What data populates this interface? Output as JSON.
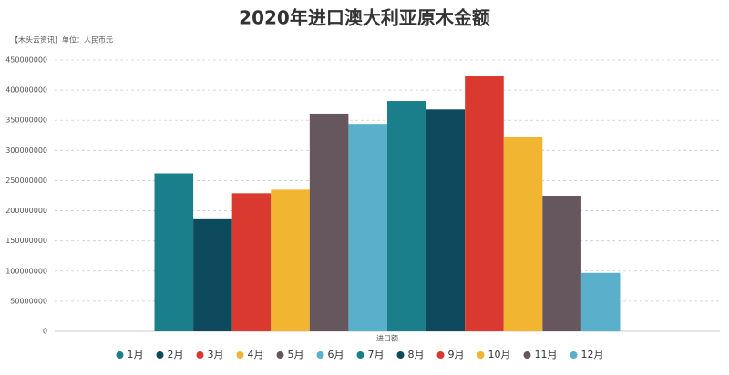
{
  "chart_data": {
    "type": "bar",
    "title": "2020年进口澳大利亚原木金额",
    "subtitle": "【木头云资讯】单位：人民币元",
    "categories": [
      "进口额"
    ],
    "series": [
      {
        "name": "1月",
        "color": "#1b7f8b",
        "values": [
          262000000
        ]
      },
      {
        "name": "2月",
        "color": "#0e4a5d",
        "values": [
          186000000
        ]
      },
      {
        "name": "3月",
        "color": "#d9392f",
        "values": [
          229000000
        ]
      },
      {
        "name": "4月",
        "color": "#f2b531",
        "values": [
          235000000
        ]
      },
      {
        "name": "5月",
        "color": "#66575f",
        "values": [
          361000000
        ]
      },
      {
        "name": "6月",
        "color": "#5ab0cb",
        "values": [
          344000000
        ]
      },
      {
        "name": "7月",
        "color": "#1b7f8b",
        "values": [
          382000000
        ]
      },
      {
        "name": "8月",
        "color": "#0e4a5d",
        "values": [
          368000000
        ]
      },
      {
        "name": "9月",
        "color": "#d9392f",
        "values": [
          424000000
        ]
      },
      {
        "name": "10月",
        "color": "#f2b531",
        "values": [
          323000000
        ]
      },
      {
        "name": "11月",
        "color": "#66575f",
        "values": [
          225000000
        ]
      },
      {
        "name": "12月",
        "color": "#5ab0cb",
        "values": [
          97000000
        ]
      }
    ],
    "ylim": [
      0,
      450000000
    ],
    "yticks": [
      0,
      50000000,
      100000000,
      150000000,
      200000000,
      250000000,
      300000000,
      350000000,
      400000000,
      450000000
    ],
    "grid": true,
    "legend": "bottom"
  }
}
